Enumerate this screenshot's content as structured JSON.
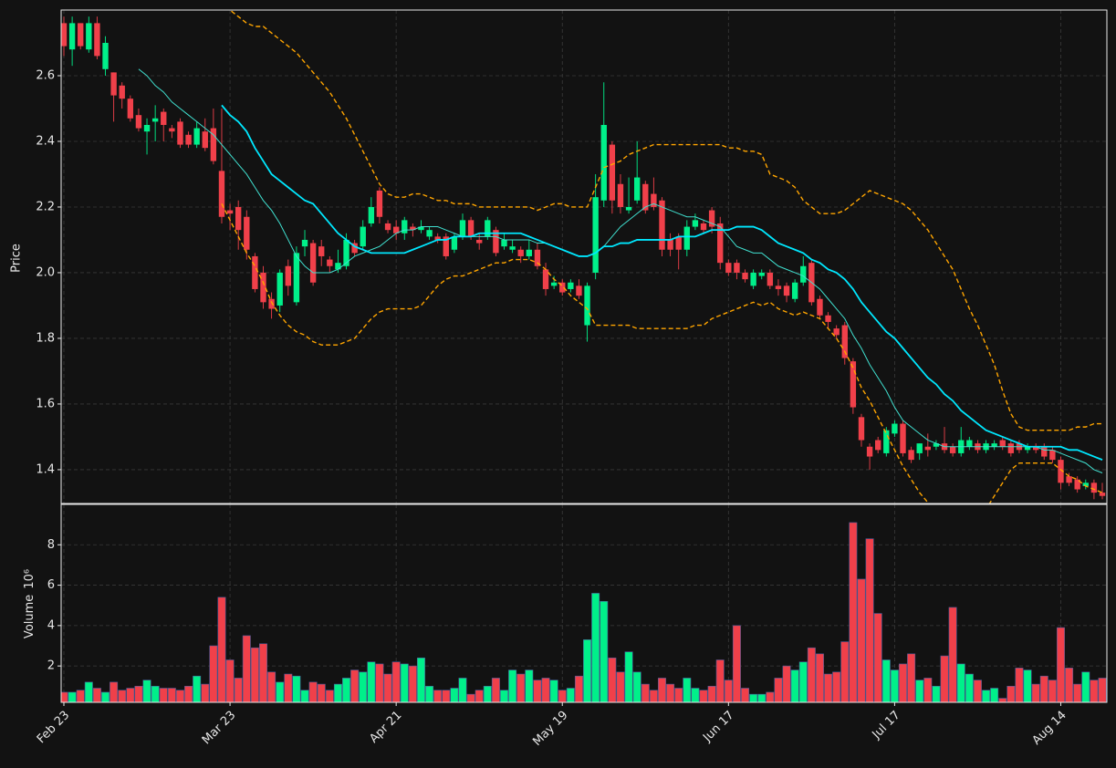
{
  "chart_data": {
    "type": "candlestick",
    "y_label": "Price",
    "volume_label": "Volume",
    "volume_unit": "10⁶",
    "up_color": "#00f08a",
    "down_color": "#f0404a",
    "grid": true,
    "ylim": [
      1.297,
      2.8
    ],
    "yticks": [
      1.4,
      1.6,
      1.8,
      {
        "value": 2,
        "label": "2.0"
      },
      2.2,
      2.4,
      2.6
    ],
    "volume_ylim": [
      0.2,
      10
    ],
    "volume_yticks": [
      2,
      4,
      6,
      8
    ],
    "categories": [
      "Feb 23",
      null,
      null,
      null,
      null,
      null,
      null,
      null,
      null,
      null,
      null,
      null,
      null,
      null,
      null,
      null,
      null,
      null,
      null,
      null,
      "Mar 23",
      null,
      null,
      null,
      null,
      null,
      null,
      null,
      null,
      null,
      null,
      null,
      null,
      null,
      null,
      null,
      null,
      null,
      null,
      null,
      "Apr 21",
      null,
      null,
      null,
      null,
      null,
      null,
      null,
      null,
      null,
      null,
      null,
      null,
      null,
      null,
      null,
      null,
      null,
      null,
      null,
      "May 19",
      null,
      null,
      null,
      null,
      null,
      null,
      null,
      null,
      null,
      null,
      null,
      null,
      null,
      null,
      null,
      null,
      null,
      null,
      null,
      "Jun 17",
      null,
      null,
      null,
      null,
      null,
      null,
      null,
      null,
      null,
      null,
      null,
      null,
      null,
      null,
      null,
      null,
      null,
      null,
      null,
      "Jul 17",
      null,
      null,
      null,
      null,
      null,
      null,
      null,
      null,
      null,
      null,
      null,
      null,
      null,
      null,
      null,
      null,
      null,
      null,
      null,
      "Aug 14",
      null,
      null,
      null,
      null,
      null
    ],
    "open": [
      2.76,
      2.68,
      2.76,
      2.68,
      2.76,
      2.62,
      2.61,
      2.57,
      2.53,
      2.48,
      2.43,
      2.46,
      2.49,
      2.44,
      2.46,
      2.42,
      2.39,
      2.43,
      2.44,
      2.31,
      2.19,
      2.2,
      2.17,
      2.05,
      2.0,
      1.92,
      1.9,
      2.02,
      1.91,
      2.08,
      2.09,
      2.08,
      2.04,
      2.01,
      2.02,
      2.09,
      2.08,
      2.15,
      2.25,
      2.15,
      2.14,
      2.12,
      2.14,
      2.13,
      2.11,
      2.11,
      2.11,
      2.07,
      2.11,
      2.16,
      2.1,
      2.11,
      2.13,
      2.08,
      2.07,
      2.07,
      2.05,
      2.07,
      2.01,
      1.96,
      1.97,
      1.95,
      1.96,
      1.84,
      2.0,
      2.22,
      2.39,
      2.27,
      2.19,
      2.22,
      2.27,
      2.24,
      2.22,
      2.1,
      2.11,
      2.07,
      2.14,
      2.15,
      2.19,
      2.15,
      2.03,
      2.03,
      2.0,
      1.96,
      1.99,
      2.0,
      1.96,
      1.96,
      1.92,
      1.97,
      2.03,
      1.92,
      1.87,
      1.83,
      1.84,
      1.73,
      1.56,
      1.47,
      1.49,
      1.45,
      1.51,
      1.54,
      1.46,
      1.45,
      1.47,
      1.47,
      1.48,
      1.47,
      1.45,
      1.47,
      1.48,
      1.46,
      1.47,
      1.49,
      1.48,
      1.48,
      1.46,
      1.47,
      1.47,
      1.46,
      1.43,
      1.38,
      1.37,
      1.35,
      1.36,
      1.33
    ],
    "high": [
      2.78,
      2.78,
      2.76,
      2.78,
      2.78,
      2.72,
      2.61,
      2.58,
      2.54,
      2.5,
      2.47,
      2.51,
      2.5,
      2.45,
      2.47,
      2.43,
      2.46,
      2.47,
      2.5,
      2.5,
      2.21,
      2.22,
      2.19,
      2.06,
      2.02,
      1.94,
      2.01,
      2.04,
      2.08,
      2.13,
      2.1,
      2.1,
      2.05,
      2.07,
      2.12,
      2.1,
      2.16,
      2.23,
      2.26,
      2.16,
      2.16,
      2.17,
      2.15,
      2.16,
      2.14,
      2.12,
      2.12,
      2.12,
      2.18,
      2.17,
      2.12,
      2.17,
      2.14,
      2.12,
      2.1,
      2.08,
      2.1,
      2.09,
      2.03,
      1.99,
      1.98,
      1.98,
      1.98,
      1.97,
      2.3,
      2.58,
      2.4,
      2.3,
      2.29,
      2.4,
      2.28,
      2.29,
      2.23,
      2.12,
      2.12,
      2.16,
      2.18,
      2.16,
      2.2,
      2.17,
      2.04,
      2.04,
      2.01,
      2.01,
      2.01,
      2.01,
      1.98,
      1.97,
      1.98,
      2.05,
      2.04,
      1.93,
      1.88,
      1.84,
      1.85,
      1.74,
      1.57,
      1.48,
      1.5,
      1.53,
      1.55,
      1.55,
      1.47,
      1.48,
      1.51,
      1.49,
      1.53,
      1.48,
      1.53,
      1.5,
      1.49,
      1.49,
      1.49,
      1.5,
      1.49,
      1.49,
      1.48,
      1.48,
      1.48,
      1.47,
      1.44,
      1.39,
      1.38,
      1.37,
      1.37,
      1.36
    ],
    "low": [
      2.66,
      2.63,
      2.68,
      2.67,
      2.65,
      2.6,
      2.46,
      2.5,
      2.46,
      2.43,
      2.36,
      2.4,
      2.4,
      2.41,
      2.38,
      2.38,
      2.38,
      2.37,
      2.33,
      2.15,
      2.13,
      2.07,
      2.04,
      1.94,
      1.89,
      1.86,
      1.88,
      1.93,
      1.9,
      2.05,
      1.96,
      2.02,
      2.0,
      2.0,
      2.01,
      2.05,
      2.07,
      2.14,
      2.15,
      2.12,
      2.1,
      2.1,
      2.11,
      2.12,
      2.1,
      2.09,
      2.04,
      2.06,
      2.1,
      2.1,
      2.07,
      2.1,
      2.05,
      2.07,
      2.06,
      2.03,
      2.04,
      2.01,
      1.93,
      1.95,
      1.93,
      1.94,
      1.92,
      1.79,
      1.98,
      2.2,
      2.18,
      2.18,
      2.18,
      2.21,
      2.18,
      2.19,
      2.05,
      2.05,
      2.01,
      2.05,
      2.13,
      2.12,
      2.12,
      2.01,
      1.99,
      1.98,
      1.97,
      1.95,
      1.98,
      1.95,
      1.93,
      1.91,
      1.91,
      1.96,
      1.9,
      1.86,
      1.83,
      1.8,
      1.72,
      1.57,
      1.47,
      1.4,
      1.45,
      1.44,
      1.5,
      1.44,
      1.42,
      1.43,
      1.44,
      1.46,
      1.45,
      1.44,
      1.44,
      1.46,
      1.45,
      1.45,
      1.46,
      1.46,
      1.44,
      1.45,
      1.45,
      1.45,
      1.43,
      1.42,
      1.34,
      1.35,
      1.33,
      1.34,
      1.31,
      1.31
    ],
    "close": [
      2.69,
      2.76,
      2.69,
      2.76,
      2.66,
      2.7,
      2.54,
      2.53,
      2.47,
      2.44,
      2.45,
      2.47,
      2.45,
      2.43,
      2.39,
      2.39,
      2.44,
      2.38,
      2.34,
      2.17,
      2.18,
      2.13,
      2.07,
      1.95,
      1.91,
      1.89,
      2.0,
      1.96,
      2.06,
      2.1,
      1.97,
      2.05,
      2.02,
      2.03,
      2.1,
      2.06,
      2.14,
      2.2,
      2.17,
      2.13,
      2.12,
      2.16,
      2.13,
      2.14,
      2.13,
      2.1,
      2.05,
      2.11,
      2.16,
      2.11,
      2.09,
      2.16,
      2.06,
      2.1,
      2.08,
      2.05,
      2.07,
      2.02,
      1.95,
      1.97,
      1.94,
      1.97,
      1.93,
      1.96,
      2.23,
      2.45,
      2.22,
      2.2,
      2.2,
      2.29,
      2.19,
      2.2,
      2.07,
      2.07,
      2.07,
      2.14,
      2.16,
      2.13,
      2.14,
      2.03,
      2.0,
      2.0,
      1.98,
      2.0,
      2.0,
      1.96,
      1.95,
      1.93,
      1.97,
      2.02,
      1.91,
      1.87,
      1.85,
      1.81,
      1.74,
      1.59,
      1.49,
      1.44,
      1.46,
      1.52,
      1.54,
      1.45,
      1.43,
      1.48,
      1.46,
      1.48,
      1.46,
      1.45,
      1.49,
      1.49,
      1.46,
      1.48,
      1.48,
      1.47,
      1.45,
      1.46,
      1.47,
      1.46,
      1.44,
      1.43,
      1.36,
      1.36,
      1.34,
      1.36,
      1.33,
      1.32
    ],
    "volume": [
      0.7,
      0.7,
      0.8,
      1.2,
      0.9,
      0.7,
      1.2,
      0.8,
      0.9,
      1.0,
      1.3,
      1.0,
      0.9,
      0.9,
      0.8,
      1.0,
      1.5,
      1.1,
      3.0,
      5.4,
      2.3,
      1.4,
      3.5,
      2.9,
      3.1,
      1.7,
      1.2,
      1.6,
      1.5,
      0.8,
      1.2,
      1.1,
      0.8,
      1.1,
      1.4,
      1.8,
      1.7,
      2.2,
      2.1,
      1.6,
      2.2,
      2.1,
      2.0,
      2.4,
      1.0,
      0.8,
      0.8,
      0.9,
      1.4,
      0.6,
      0.8,
      1.0,
      1.4,
      0.8,
      1.8,
      1.6,
      1.8,
      1.3,
      1.4,
      1.3,
      0.8,
      0.9,
      1.5,
      3.3,
      5.6,
      5.2,
      2.4,
      1.7,
      2.7,
      1.7,
      1.1,
      0.8,
      1.4,
      1.1,
      0.9,
      1.4,
      0.9,
      0.8,
      1.0,
      2.3,
      1.3,
      4.0,
      0.9,
      0.6,
      0.6,
      0.7,
      1.4,
      2.0,
      1.8,
      2.2,
      2.9,
      2.6,
      1.6,
      1.7,
      3.2,
      9.1,
      6.3,
      8.3,
      4.6,
      2.3,
      1.8,
      2.1,
      2.6,
      1.3,
      1.4,
      1.0,
      2.5,
      4.9,
      2.1,
      1.6,
      1.3,
      0.8,
      0.9,
      0.4,
      1.0,
      1.9,
      1.8,
      1.1,
      1.5,
      1.3,
      3.9,
      1.9,
      1.1,
      1.7,
      1.3,
      1.4
    ],
    "overlays": [
      {
        "color": "#40e0d0",
        "width": 1,
        "style": "solid",
        "values": [
          null,
          null,
          null,
          null,
          null,
          null,
          null,
          null,
          null,
          2.62,
          2.6,
          2.57,
          2.55,
          2.52,
          2.5,
          2.48,
          2.46,
          2.44,
          2.42,
          2.39,
          2.36,
          2.33,
          2.3,
          2.26,
          2.22,
          2.19,
          2.15,
          2.1,
          2.05,
          2.02,
          2.0,
          2.0,
          2.0,
          2.01,
          2.03,
          2.05,
          2.06,
          2.07,
          2.08,
          2.1,
          2.12,
          2.13,
          2.13,
          2.14,
          2.14,
          2.14,
          2.13,
          2.12,
          2.11,
          2.11,
          2.11,
          2.11,
          2.11,
          2.1,
          2.1,
          2.1,
          2.1,
          2.09,
          2.09,
          2.08,
          2.07,
          2.06,
          2.05,
          2.05,
          2.06,
          2.08,
          2.11,
          2.14,
          2.16,
          2.18,
          2.2,
          2.21,
          2.2,
          2.19,
          2.18,
          2.17,
          2.17,
          2.16,
          2.15,
          2.14,
          2.11,
          2.08,
          2.07,
          2.06,
          2.06,
          2.04,
          2.02,
          2.01,
          2.0,
          1.99,
          1.97,
          1.95,
          1.92,
          1.89,
          1.86,
          1.81,
          1.77,
          1.72,
          1.68,
          1.64,
          1.59,
          1.55,
          1.53,
          1.51,
          1.49,
          1.48,
          1.47,
          1.47,
          1.47,
          1.47,
          1.47,
          1.47,
          1.47,
          1.47,
          1.47,
          1.47,
          1.47,
          1.47,
          1.46,
          1.46,
          1.45,
          1.44,
          1.43,
          1.42,
          1.4,
          1.39
        ]
      },
      {
        "color": "#00e8ff",
        "width": 1.8,
        "style": "solid",
        "values": [
          null,
          null,
          null,
          null,
          null,
          null,
          null,
          null,
          null,
          null,
          null,
          null,
          null,
          null,
          null,
          null,
          null,
          null,
          null,
          2.51,
          2.48,
          2.46,
          2.43,
          2.38,
          2.34,
          2.3,
          2.28,
          2.26,
          2.24,
          2.22,
          2.21,
          2.18,
          2.15,
          2.12,
          2.1,
          2.08,
          2.07,
          2.06,
          2.06,
          2.06,
          2.06,
          2.06,
          2.07,
          2.08,
          2.09,
          2.1,
          2.1,
          2.11,
          2.11,
          2.11,
          2.12,
          2.12,
          2.12,
          2.12,
          2.12,
          2.12,
          2.11,
          2.1,
          2.09,
          2.08,
          2.07,
          2.06,
          2.05,
          2.05,
          2.06,
          2.08,
          2.08,
          2.09,
          2.09,
          2.1,
          2.1,
          2.1,
          2.1,
          2.1,
          2.11,
          2.11,
          2.11,
          2.12,
          2.13,
          2.13,
          2.13,
          2.14,
          2.14,
          2.14,
          2.13,
          2.11,
          2.09,
          2.08,
          2.07,
          2.06,
          2.04,
          2.03,
          2.01,
          2.0,
          1.98,
          1.95,
          1.91,
          1.88,
          1.85,
          1.82,
          1.8,
          1.77,
          1.74,
          1.71,
          1.68,
          1.66,
          1.63,
          1.61,
          1.58,
          1.56,
          1.54,
          1.52,
          1.51,
          1.5,
          1.49,
          1.48,
          1.47,
          1.47,
          1.47,
          1.47,
          1.47,
          1.46,
          1.46,
          1.45,
          1.44,
          1.43
        ]
      },
      {
        "color": "#ffa500",
        "width": 1.4,
        "style": "dashed",
        "values": [
          null,
          null,
          null,
          null,
          null,
          null,
          null,
          null,
          null,
          null,
          null,
          null,
          null,
          null,
          null,
          null,
          null,
          null,
          null,
          2.83,
          2.8,
          2.78,
          2.76,
          2.75,
          2.75,
          2.73,
          2.71,
          2.69,
          2.67,
          2.64,
          2.61,
          2.58,
          2.55,
          2.51,
          2.47,
          2.42,
          2.37,
          2.32,
          2.27,
          2.24,
          2.23,
          2.23,
          2.24,
          2.24,
          2.23,
          2.22,
          2.22,
          2.21,
          2.21,
          2.21,
          2.2,
          2.2,
          2.2,
          2.2,
          2.2,
          2.2,
          2.2,
          2.19,
          2.2,
          2.21,
          2.21,
          2.2,
          2.2,
          2.2,
          2.26,
          2.32,
          2.33,
          2.34,
          2.36,
          2.37,
          2.38,
          2.39,
          2.39,
          2.39,
          2.39,
          2.39,
          2.39,
          2.39,
          2.39,
          2.39,
          2.38,
          2.38,
          2.37,
          2.37,
          2.36,
          2.3,
          2.29,
          2.28,
          2.26,
          2.22,
          2.2,
          2.18,
          2.18,
          2.18,
          2.19,
          2.21,
          2.23,
          2.25,
          2.24,
          2.23,
          2.22,
          2.21,
          2.19,
          2.16,
          2.13,
          2.09,
          2.05,
          2.01,
          1.95,
          1.89,
          1.84,
          1.78,
          1.72,
          1.64,
          1.57,
          1.53,
          1.52,
          1.52,
          1.52,
          1.52,
          1.52,
          1.52,
          1.53,
          1.53,
          1.54,
          1.54
        ]
      },
      {
        "color": "#ffa500",
        "width": 1.4,
        "style": "dashed",
        "values": [
          null,
          null,
          null,
          null,
          null,
          null,
          null,
          null,
          null,
          null,
          null,
          null,
          null,
          null,
          null,
          null,
          null,
          null,
          null,
          2.21,
          2.16,
          2.11,
          2.06,
          2.02,
          1.97,
          1.91,
          1.87,
          1.84,
          1.82,
          1.81,
          1.79,
          1.78,
          1.78,
          1.78,
          1.79,
          1.8,
          1.83,
          1.86,
          1.88,
          1.89,
          1.89,
          1.89,
          1.89,
          1.9,
          1.93,
          1.96,
          1.98,
          1.99,
          1.99,
          2.0,
          2.01,
          2.02,
          2.03,
          2.03,
          2.04,
          2.04,
          2.04,
          2.03,
          2.01,
          1.98,
          1.96,
          1.93,
          1.91,
          1.89,
          1.84,
          1.84,
          1.84,
          1.84,
          1.84,
          1.83,
          1.83,
          1.83,
          1.83,
          1.83,
          1.83,
          1.83,
          1.84,
          1.84,
          1.86,
          1.87,
          1.88,
          1.89,
          1.9,
          1.91,
          1.9,
          1.91,
          1.89,
          1.88,
          1.87,
          1.88,
          1.87,
          1.86,
          1.83,
          1.8,
          1.76,
          1.71,
          1.65,
          1.61,
          1.56,
          1.51,
          1.46,
          1.41,
          1.37,
          1.33,
          1.3,
          1.27,
          1.25,
          1.24,
          1.24,
          1.25,
          1.26,
          1.28,
          1.32,
          1.36,
          1.4,
          1.42,
          1.42,
          1.42,
          1.42,
          1.42,
          1.4,
          1.38,
          1.37,
          1.35,
          1.34,
          1.33
        ]
      }
    ]
  }
}
